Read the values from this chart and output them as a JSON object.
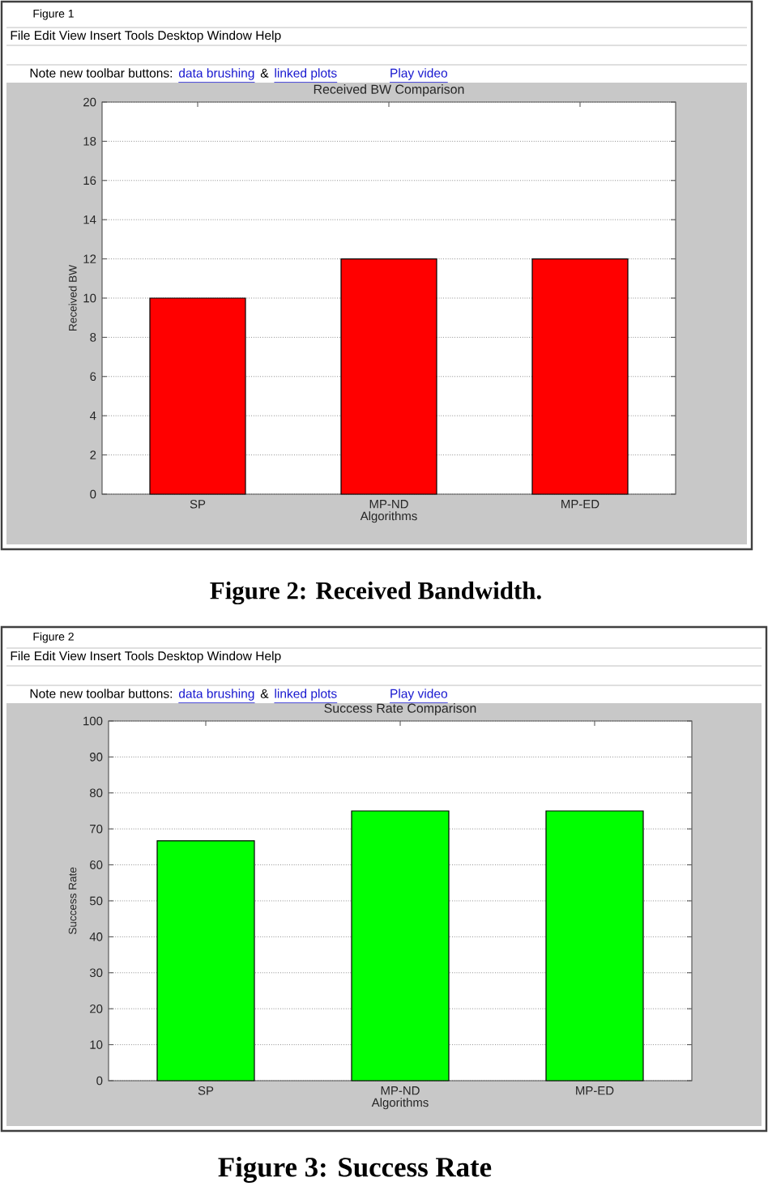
{
  "chart_data": [
    {
      "type": "bar",
      "title": "Received BW Comparison",
      "xlabel": "Algorithms",
      "ylabel": "Received BW",
      "categories": [
        "SP",
        "MP-ND",
        "MP-ED"
      ],
      "values": [
        10,
        12,
        12
      ],
      "color": "#ff0000",
      "ylim": [
        0,
        20
      ],
      "yticks": [
        0,
        2,
        4,
        6,
        8,
        10,
        12,
        14,
        16,
        18,
        20
      ],
      "grid": "y",
      "annotations": [
        "Figure 1",
        "File Edit View Insert Tools Desktop Window Help",
        "Note new toolbar buttons:",
        "data brushing",
        "&",
        "linked plots",
        "Play video",
        "Figure 2: Received Bandwidth."
      ]
    },
    {
      "type": "bar",
      "title": "Success Rate Comparison",
      "xlabel": "Algorithms",
      "ylabel": "Success Rate",
      "categories": [
        "SP",
        "MP-ND",
        "MP-ED"
      ],
      "values": [
        66.7,
        75,
        75
      ],
      "color": "#00ff00",
      "ylim": [
        0,
        100
      ],
      "yticks": [
        0,
        10,
        20,
        30,
        40,
        50,
        60,
        70,
        80,
        90,
        100
      ],
      "grid": "y",
      "annotations": [
        "Figure 2",
        "File Edit View Insert Tools Desktop Window Help",
        "Note new toolbar buttons:",
        "data brushing",
        "&",
        "linked plots",
        "Play video",
        "Figure 3: Success Rate"
      ]
    }
  ]
}
